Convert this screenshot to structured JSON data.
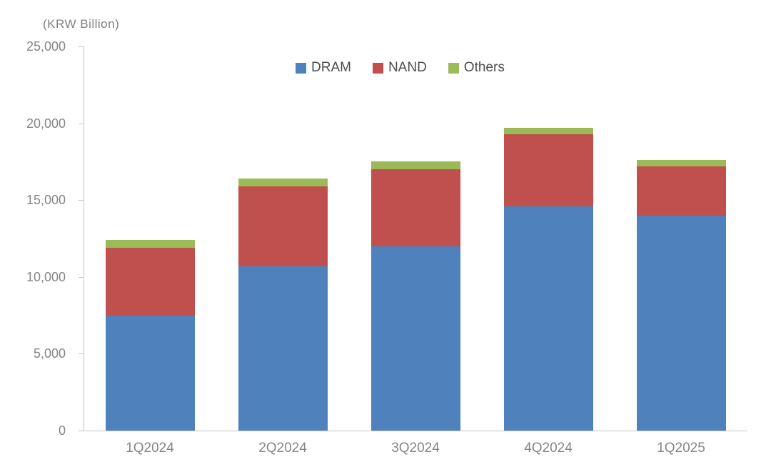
{
  "chart_data": {
    "type": "bar",
    "stacked": true,
    "title": "",
    "axis_title": "(KRW Billion)",
    "xlabel": "",
    "ylabel": "KRW Billion",
    "categories": [
      "1Q2024",
      "2Q2024",
      "3Q2024",
      "4Q2024",
      "1Q2025"
    ],
    "series": [
      {
        "name": "DRAM",
        "color": "#4F81BD",
        "values": [
          7500,
          10700,
          12000,
          14600,
          14000
        ]
      },
      {
        "name": "NAND",
        "color": "#C0504D",
        "values": [
          4400,
          5200,
          5000,
          4700,
          3200
        ]
      },
      {
        "name": "Others",
        "color": "#9BBB59",
        "values": [
          500,
          500,
          500,
          400,
          400
        ]
      }
    ],
    "totals": [
      12400,
      16400,
      17500,
      19700,
      17600
    ],
    "ylim": [
      0,
      25000
    ],
    "yticks": [
      {
        "value": 0,
        "label": "0"
      },
      {
        "value": 5000,
        "label": "5,000"
      },
      {
        "value": 10000,
        "label": "10,000"
      },
      {
        "value": 15000,
        "label": "15,000"
      },
      {
        "value": 20000,
        "label": "20,000"
      },
      {
        "value": 25000,
        "label": "25,000"
      }
    ],
    "legend_position": "top",
    "grid": false
  },
  "colors": {
    "background": "#FFFFFF",
    "axis_line": "#C6C6C6",
    "tick_label": "#858585",
    "legend_text": "#4D4D4D"
  }
}
